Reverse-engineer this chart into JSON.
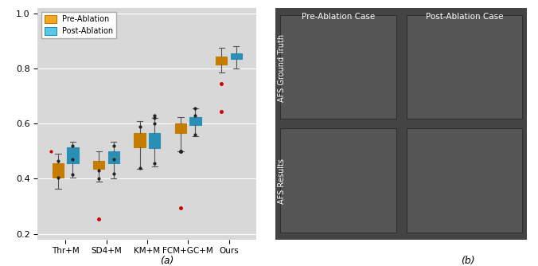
{
  "categories": [
    "Thr+M",
    "SD4+M",
    "KM+M",
    "FCM+GC+M",
    "Ours"
  ],
  "pre_ablation": {
    "Thr+M": {
      "q1": 0.405,
      "median": 0.435,
      "q3": 0.455,
      "whislo": 0.365,
      "whishi": 0.49,
      "mean": 0.435,
      "fliers": []
    },
    "SD4+M": {
      "q1": 0.435,
      "median": 0.455,
      "q3": 0.465,
      "whislo": 0.39,
      "whishi": 0.5,
      "mean": 0.45,
      "fliers": [
        0.255
      ]
    },
    "KM+M": {
      "q1": 0.515,
      "median": 0.545,
      "q3": 0.565,
      "whislo": 0.435,
      "whishi": 0.61,
      "mean": 0.545,
      "fliers": []
    },
    "FCM+GC+M": {
      "q1": 0.565,
      "median": 0.585,
      "q3": 0.6,
      "whislo": 0.5,
      "whishi": 0.625,
      "mean": 0.585,
      "fliers": [
        0.295,
        0.5
      ]
    },
    "Ours": {
      "q1": 0.815,
      "median": 0.835,
      "q3": 0.845,
      "whislo": 0.785,
      "whishi": 0.875,
      "mean": 0.835,
      "fliers": [
        0.745,
        0.645
      ]
    }
  },
  "post_ablation": {
    "Thr+M": {
      "q1": 0.455,
      "median": 0.495,
      "q3": 0.515,
      "whislo": 0.405,
      "whishi": 0.535,
      "mean": 0.49,
      "fliers": []
    },
    "SD4+M": {
      "q1": 0.455,
      "median": 0.48,
      "q3": 0.5,
      "whislo": 0.4,
      "whishi": 0.535,
      "mean": 0.475,
      "fliers": []
    },
    "KM+M": {
      "q1": 0.51,
      "median": 0.545,
      "q3": 0.565,
      "whislo": 0.445,
      "whishi": 0.62,
      "mean": 0.54,
      "fliers": []
    },
    "FCM+GC+M": {
      "q1": 0.595,
      "median": 0.61,
      "q3": 0.625,
      "whislo": 0.555,
      "whishi": 0.655,
      "mean": 0.61,
      "fliers": []
    },
    "Ours": {
      "q1": 0.835,
      "median": 0.845,
      "q3": 0.855,
      "whislo": 0.8,
      "whishi": 0.88,
      "mean": 0.845,
      "fliers": []
    }
  },
  "pre_color": "#f5a623",
  "post_color": "#5bc8e8",
  "pre_edge": "#c47d00",
  "post_edge": "#2a8fb5",
  "flier_color_black": "#222222",
  "flier_color_red": "#cc0000",
  "ylim": [
    0.18,
    1.02
  ],
  "yticks": [
    0.2,
    0.4,
    0.6,
    0.8,
    1.0
  ],
  "grid_color": "#ffffff",
  "bg_color": "#d8d8d8",
  "box_width": 0.28,
  "legend_labels": [
    "Pre-Ablation",
    "Post-Ablation"
  ],
  "caption_a": "(a)",
  "caption_b": "(b)",
  "title_pre": "Pre-Ablation Case",
  "title_post": "Post-Ablation Case",
  "label_gt": "AFS Ground Truth",
  "label_res": "AFS Results",
  "img_bg": "#505050"
}
